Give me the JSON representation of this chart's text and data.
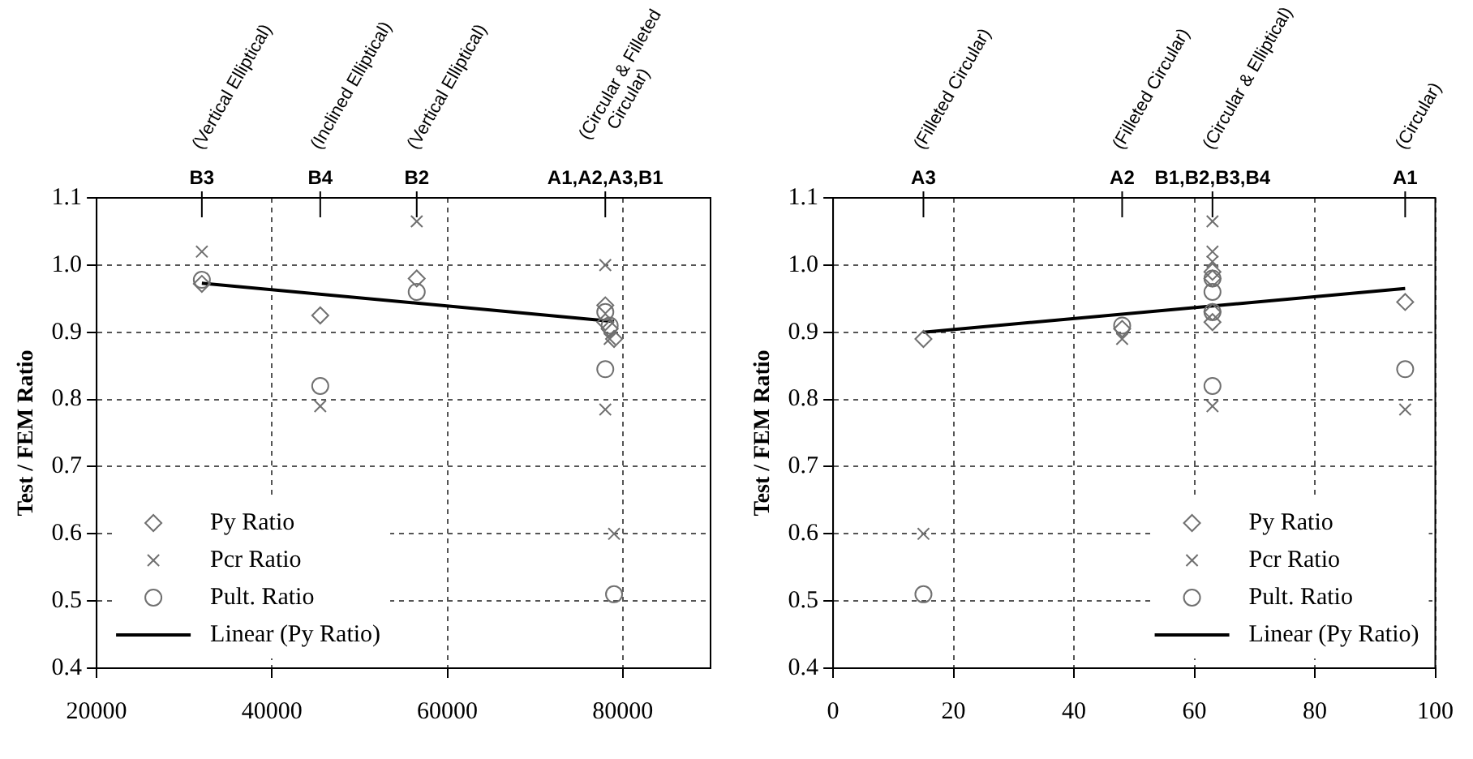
{
  "chart_data": [
    {
      "type": "scatter",
      "ylabel": "Test / FEM Ratio",
      "xlim": [
        20000,
        90000
      ],
      "xticks": [
        20000,
        40000,
        60000,
        80000
      ],
      "ylim": [
        0.4,
        1.1
      ],
      "yticks": [
        0.4,
        0.5,
        0.6,
        0.7,
        0.8,
        0.9,
        {
          "value": 1,
          "label": "1.0"
        },
        1.1
      ],
      "grid": true,
      "legend": "bottom left",
      "annotations": [
        {
          "text": "B3",
          "x": 32000
        },
        "(Vertical Elliptical)",
        {
          "text": "B4",
          "x": 45500
        },
        "(Inclined Elliptical)",
        {
          "text": "B2",
          "x": 56500
        },
        "(Vertical Elliptical)",
        {
          "text": "A1,A2,A3,B1",
          "x": 78000
        },
        "(Circular & Filleted Circular)"
      ],
      "series": [
        {
          "name": "Py Ratio",
          "color": "#707070",
          "marker": "diamond",
          "x": [
            32000,
            45500,
            56500,
            78000,
            78000,
            78500,
            79000
          ],
          "values": [
            0.972,
            0.925,
            0.98,
            0.94,
            0.915,
            0.905,
            0.89
          ]
        },
        {
          "name": "Pcr Ratio",
          "color": "#707070",
          "marker": "cross",
          "x": [
            32000,
            45500,
            56500,
            78000,
            78000,
            78500,
            79000
          ],
          "values": [
            1.02,
            0.79,
            1.065,
            1.0,
            0.785,
            0.89,
            0.6
          ]
        },
        {
          "name": "Pult. Ratio",
          "color": "#707070",
          "marker": "circle",
          "x": [
            32000,
            45500,
            56500,
            78000,
            78000,
            78500,
            79000
          ],
          "values": [
            0.978,
            0.82,
            0.96,
            0.93,
            0.845,
            0.91,
            0.51
          ]
        },
        {
          "name": "Linear (Py Ratio)",
          "type": "line",
          "color": "#000000",
          "marker": "none",
          "x": [
            32000,
            79000
          ],
          "values": [
            0.973,
            0.916
          ]
        }
      ]
    },
    {
      "type": "scatter",
      "ylabel": "Test / FEM Ratio",
      "xlim": [
        0,
        100
      ],
      "xticks": [
        0,
        20,
        40,
        60,
        80,
        100
      ],
      "ylim": [
        0.4,
        1.1
      ],
      "yticks": [
        0.4,
        0.5,
        0.6,
        0.7,
        0.8,
        0.9,
        {
          "value": 1,
          "label": "1.0"
        },
        1.1
      ],
      "grid": true,
      "legend": "bottom right",
      "annotations": [
        {
          "text": "A3",
          "x": 15
        },
        "(Filleted Circular)",
        {
          "text": "A2",
          "x": 48
        },
        "(Filleted Circular)",
        {
          "text": "B1,B2,B3,B4",
          "x": 63
        },
        "(Circular & Elliptical)",
        {
          "text": "A1",
          "x": 95
        },
        "(Circular)"
      ],
      "series": [
        {
          "name": "Py Ratio",
          "color": "#707070",
          "marker": "diamond",
          "x": [
            15,
            48,
            63,
            63,
            63,
            63,
            95
          ],
          "values": [
            0.89,
            0.905,
            0.98,
            0.99,
            0.93,
            0.915,
            0.945
          ]
        },
        {
          "name": "Pcr Ratio",
          "color": "#707070",
          "marker": "cross",
          "x": [
            15,
            48,
            63,
            63,
            63,
            63,
            95
          ],
          "values": [
            0.6,
            0.89,
            1.065,
            1.02,
            1.005,
            0.79,
            0.785
          ]
        },
        {
          "name": "Pult. Ratio",
          "color": "#707070",
          "marker": "circle",
          "x": [
            15,
            48,
            63,
            63,
            63,
            63,
            95
          ],
          "values": [
            0.51,
            0.91,
            0.98,
            0.96,
            0.93,
            0.82,
            0.845
          ]
        },
        {
          "name": "Linear (Py Ratio)",
          "type": "line",
          "color": "#000000",
          "marker": "none",
          "x": [
            15,
            95
          ],
          "values": [
            0.9,
            0.965
          ]
        }
      ]
    }
  ]
}
